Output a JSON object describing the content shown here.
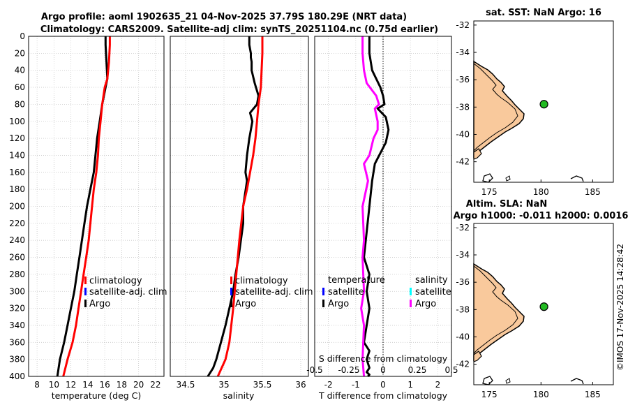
{
  "title": {
    "line1": "Argo profile: aoml 1902635_21 04-Nov-2025 37.79S 180.29E (NRT data)",
    "line2": "Climatology: CARS2009. Satellite-adj clim: synTS_20251104.nc (0.75d earlier)"
  },
  "footer_stamp": "©IMOS 17-Nov-2025 14:28:42",
  "colors": {
    "argo": "#000000",
    "climatology": "#ff0000",
    "satellite": "#0000ff",
    "satellite_salinity": "#00ffff",
    "argo_salinity": "#ff00ff",
    "land": "#f9c99c",
    "marker": "#22bb22"
  },
  "chart_data": [
    {
      "type": "line",
      "id": "temperature-profile",
      "xlabel": "temperature (deg C)",
      "ylabel": "",
      "xlim": [
        7,
        23
      ],
      "ylim": [
        400,
        0
      ],
      "xticks": [
        "8",
        "10",
        "12",
        "14",
        "16",
        "18",
        "20",
        "22"
      ],
      "xtick_values": [
        8,
        10,
        12,
        14,
        16,
        18,
        20,
        22
      ],
      "yticks": [
        "0",
        "20",
        "40",
        "60",
        "80",
        "100",
        "120",
        "140",
        "160",
        "180",
        "200",
        "220",
        "240",
        "260",
        "280",
        "300",
        "320",
        "340",
        "360",
        "380",
        "400"
      ],
      "ytick_values": [
        0,
        20,
        40,
        60,
        80,
        100,
        120,
        140,
        160,
        180,
        200,
        220,
        240,
        260,
        280,
        300,
        320,
        340,
        360,
        380,
        400
      ],
      "legend": [
        "climatology",
        "satellite-adj. clim",
        "Argo"
      ],
      "series": [
        {
          "name": "Argo",
          "x": [
            16.1,
            16.1,
            16.2,
            16.3,
            16.1,
            15.7,
            15.4,
            15.1,
            14.9,
            14.7,
            14.3,
            13.9,
            13.6,
            13.3,
            13.0,
            12.7,
            12.4,
            12.0,
            11.6,
            11.2,
            10.7,
            10.4
          ],
          "depth": [
            0,
            10,
            30,
            50,
            60,
            80,
            100,
            120,
            140,
            160,
            180,
            200,
            220,
            240,
            260,
            280,
            300,
            320,
            340,
            360,
            380,
            400
          ]
        },
        {
          "name": "climatology",
          "x": [
            16.6,
            16.6,
            16.5,
            16.3,
            16.0,
            15.7,
            15.5,
            15.3,
            15.2,
            15.0,
            14.7,
            14.5,
            14.3,
            14.1,
            13.8,
            13.5,
            13.2,
            12.9,
            12.6,
            12.2,
            11.6,
            11.1
          ],
          "depth": [
            0,
            10,
            30,
            50,
            60,
            80,
            100,
            120,
            140,
            160,
            180,
            200,
            220,
            240,
            260,
            280,
            300,
            320,
            340,
            360,
            380,
            400
          ]
        }
      ]
    },
    {
      "type": "line",
      "id": "salinity-profile",
      "xlabel": "salinity",
      "ylabel": "",
      "xlim": [
        34.3,
        36.1
      ],
      "ylim": [
        400,
        0
      ],
      "xticks": [
        "34.5",
        "35",
        "35.5",
        "36"
      ],
      "xtick_values": [
        34.5,
        35,
        35.5,
        36
      ],
      "legend": [
        "climatology",
        "satellite-adj. clim",
        "Argo"
      ],
      "series": [
        {
          "name": "Argo",
          "x": [
            35.33,
            35.33,
            35.35,
            35.35,
            35.36,
            35.36,
            35.4,
            35.45,
            35.43,
            35.34,
            35.37,
            35.33,
            35.3,
            35.28,
            35.3,
            35.25,
            35.25,
            35.19,
            35.15,
            35.12,
            35.07,
            35.02,
            34.96,
            34.9,
            34.86,
            34.79
          ],
          "depth": [
            0,
            10,
            20,
            25,
            30,
            40,
            55,
            70,
            80,
            90,
            100,
            120,
            140,
            160,
            170,
            200,
            220,
            260,
            280,
            300,
            320,
            340,
            360,
            380,
            390,
            400
          ]
        },
        {
          "name": "climatology",
          "x": [
            35.5,
            35.5,
            35.49,
            35.48,
            35.45,
            35.43,
            35.41,
            35.38,
            35.34,
            35.3,
            35.25,
            35.2,
            35.16,
            35.12,
            35.07,
            35.02,
            34.97,
            34.92
          ],
          "depth": [
            0,
            20,
            40,
            60,
            80,
            100,
            120,
            140,
            160,
            180,
            200,
            240,
            280,
            320,
            360,
            380,
            390,
            400
          ]
        }
      ]
    },
    {
      "type": "line",
      "id": "difference-profile",
      "xlabel": "T difference from climatology",
      "x2label": "S difference from climatology",
      "xlim": [
        -2.5,
        2.5
      ],
      "ylim": [
        400,
        0
      ],
      "xticks": [
        "-2",
        "-1",
        "0",
        "1",
        "2"
      ],
      "xtick_values": [
        -2,
        -1,
        0,
        1,
        2
      ],
      "x2ticks": [
        "-0.5",
        "-0.25",
        "0",
        "0.25",
        "0.5"
      ],
      "x2tick_values": [
        -0.5,
        -0.25,
        0,
        0.25,
        0.5
      ],
      "legend_temperature": [
        "temperature",
        "satellite",
        "Argo"
      ],
      "legend_salinity": [
        "salinity",
        "satellite",
        "Argo"
      ],
      "series": [
        {
          "name": "T Argo",
          "x": [
            -0.5,
            -0.5,
            -0.4,
            -0.1,
            0,
            0.05,
            -0.2,
            0.1,
            0.2,
            0.1,
            -0.3,
            -0.4,
            -0.5,
            -0.6,
            -0.7,
            -0.5,
            -0.6,
            -0.5,
            -0.6,
            -0.7,
            -0.5,
            -0.6,
            -0.5,
            -0.6,
            -0.5,
            -0.55
          ],
          "depth": [
            0,
            20,
            40,
            60,
            70,
            80,
            85,
            95,
            110,
            125,
            150,
            170,
            200,
            230,
            260,
            280,
            300,
            320,
            340,
            360,
            370,
            380,
            390,
            395,
            398,
            400
          ]
        },
        {
          "name": "S Argo",
          "x": [
            -0.15,
            -0.15,
            -0.14,
            -0.12,
            -0.05,
            -0.03,
            -0.06,
            -0.04,
            -0.04,
            -0.07,
            -0.1,
            -0.14,
            -0.11,
            -0.15,
            -0.14,
            -0.15,
            -0.14,
            -0.16,
            -0.14,
            -0.15,
            -0.14
          ],
          "depth": [
            0,
            20,
            40,
            55,
            70,
            80,
            85,
            100,
            110,
            120,
            140,
            150,
            170,
            200,
            240,
            260,
            300,
            320,
            340,
            380,
            400
          ]
        }
      ]
    },
    {
      "type": "scatter",
      "id": "sst-map",
      "title": "sat. SST: NaN Argo: 16",
      "xlim": [
        173.5,
        187
      ],
      "ylim": [
        -43.5,
        -31.7
      ],
      "xticks": [
        "175",
        "180",
        "185"
      ],
      "xtick_values": [
        175,
        180,
        185
      ],
      "yticks": [
        "-32",
        "-34",
        "-36",
        "-38",
        "-40",
        "-42"
      ],
      "ytick_values": [
        -32,
        -34,
        -36,
        -38,
        -40,
        -42
      ],
      "points": [
        {
          "lon": 180.29,
          "lat": -37.79
        }
      ]
    },
    {
      "type": "scatter",
      "id": "sla-map",
      "title": "Altim. SLA: NaN",
      "subtitle": "Argo h1000: -0.011 h2000: 0.0016",
      "xlim": [
        173.5,
        187
      ],
      "ylim": [
        -43.5,
        -31.7
      ],
      "xticks": [
        "175",
        "180",
        "185"
      ],
      "xtick_values": [
        175,
        180,
        185
      ],
      "yticks": [
        "-32",
        "-34",
        "-36",
        "-38",
        "-40",
        "-42"
      ],
      "ytick_values": [
        -32,
        -34,
        -36,
        -38,
        -40,
        -42
      ],
      "points": [
        {
          "lon": 180.29,
          "lat": -37.79
        }
      ]
    }
  ]
}
